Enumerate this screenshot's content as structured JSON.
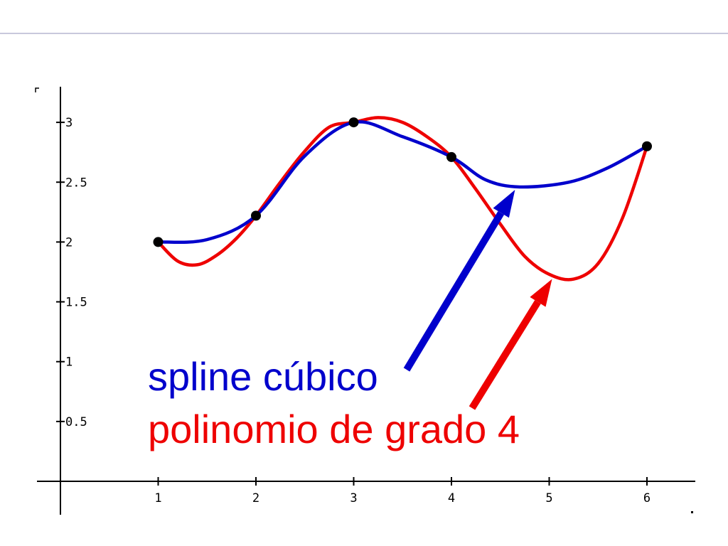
{
  "chart_data": {
    "type": "line",
    "title": "",
    "xlabel": "",
    "ylabel": "",
    "xlim": [
      0.5,
      6.5
    ],
    "ylim": [
      0,
      3.3
    ],
    "x_ticks": [
      "1",
      "2",
      "3",
      "4",
      "5",
      "6"
    ],
    "y_ticks": [
      "0.5",
      "1",
      "1.5",
      "2",
      "2.5",
      "3"
    ],
    "grid": false,
    "points": {
      "x": [
        1,
        2,
        3,
        4,
        6
      ],
      "y": [
        2.0,
        2.22,
        3.0,
        2.71,
        2.8
      ],
      "color": "#000000"
    },
    "series": [
      {
        "name": "spline cúbico",
        "color": "#0000cc",
        "x": [
          1,
          1.5,
          2,
          2.5,
          3,
          3.5,
          4,
          4.35,
          4.7,
          5.2,
          5.6,
          6
        ],
        "y": [
          2.0,
          2.02,
          2.22,
          2.72,
          3.0,
          2.88,
          2.71,
          2.52,
          2.46,
          2.5,
          2.62,
          2.8
        ]
      },
      {
        "name": "polinomio de grado 4",
        "color": "#ee0000",
        "x": [
          1,
          1.2,
          1.4,
          1.6,
          1.8,
          2,
          2.25,
          2.5,
          2.75,
          3,
          3.25,
          3.5,
          3.75,
          4,
          4.25,
          4.5,
          4.75,
          5,
          5.25,
          5.5,
          5.75,
          6
        ],
        "y": [
          2.0,
          1.84,
          1.81,
          1.89,
          2.03,
          2.22,
          2.5,
          2.76,
          2.96,
          3.0,
          3.04,
          3.0,
          2.88,
          2.71,
          2.44,
          2.15,
          1.88,
          1.73,
          1.69,
          1.82,
          2.2,
          2.8
        ]
      }
    ],
    "annotations": [
      {
        "text": "spline cúbico",
        "color": "#0000cc",
        "arrow_to": [
          4.65,
          2.46
        ]
      },
      {
        "text": "polinomio de grado 4",
        "color": "#ee0000",
        "arrow_to": [
          5.0,
          1.75
        ]
      }
    ]
  }
}
